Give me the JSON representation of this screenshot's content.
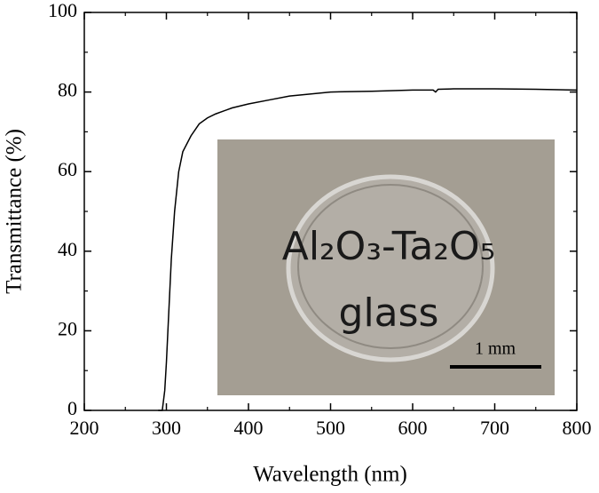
{
  "chart_data": {
    "type": "line",
    "x_label": "Wavelength  (nm)",
    "y_label": "Transmittance (%)",
    "x": [
      290,
      295,
      298,
      300,
      303,
      306,
      310,
      315,
      320,
      330,
      340,
      350,
      360,
      380,
      400,
      425,
      450,
      475,
      500,
      550,
      600,
      625,
      628,
      631,
      650,
      700,
      750,
      800
    ],
    "values": [
      0,
      0,
      5,
      12,
      25,
      38,
      50,
      60,
      65,
      69,
      72,
      73.5,
      74.5,
      76,
      77,
      78,
      79,
      79.5,
      80,
      80.2,
      80.5,
      80.5,
      80,
      80.7,
      80.8,
      80.8,
      80.7,
      80.5
    ],
    "color": "#000000",
    "xlim": [
      200,
      800
    ],
    "xticks": [
      200,
      300,
      400,
      500,
      600,
      700,
      800
    ],
    "ylim": [
      0,
      100
    ],
    "yticks": [
      0,
      20,
      40,
      60,
      80,
      100
    ],
    "grid": false,
    "inset": {
      "sample_label": "Al₂O₃-Ta₂O₅",
      "sample_label_2": "glass",
      "scale_bar": "1 mm"
    }
  }
}
